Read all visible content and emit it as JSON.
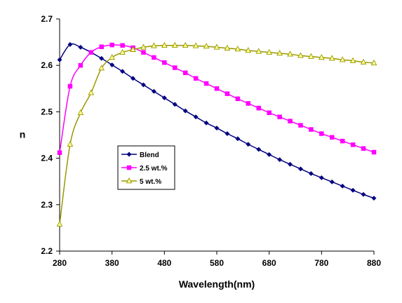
{
  "chart_data": {
    "type": "line",
    "title": "",
    "xlabel": "Wavelength(nm)",
    "ylabel": "n",
    "xlim": [
      280,
      880
    ],
    "ylim": [
      2.2,
      2.7
    ],
    "xticks": [
      280,
      380,
      480,
      580,
      680,
      780,
      880
    ],
    "yticks": [
      2.2,
      2.3,
      2.4,
      2.5,
      2.6,
      2.7
    ],
    "xtick_labels": [
      "280",
      "380",
      "480",
      "580",
      "680",
      "780",
      "880"
    ],
    "ytick_labels": [
      "2.2",
      "2.3",
      "2.4",
      "2.5",
      "2.6",
      "2.7"
    ],
    "grid": false,
    "legend_position": "center-left",
    "x": [
      280,
      300,
      320,
      340,
      360,
      380,
      400,
      420,
      440,
      460,
      480,
      500,
      520,
      540,
      560,
      580,
      600,
      620,
      640,
      660,
      680,
      700,
      720,
      740,
      760,
      780,
      800,
      820,
      840,
      860,
      880
    ],
    "series": [
      {
        "name": "Blend",
        "color": "#000080",
        "marker": "diamond",
        "values": [
          2.612,
          2.645,
          2.639,
          2.628,
          2.615,
          2.601,
          2.587,
          2.572,
          2.558,
          2.544,
          2.53,
          2.516,
          2.502,
          2.489,
          2.476,
          2.465,
          2.453,
          2.442,
          2.43,
          2.419,
          2.408,
          2.397,
          2.387,
          2.377,
          2.367,
          2.358,
          2.349,
          2.34,
          2.331,
          2.322,
          2.314
        ]
      },
      {
        "name": "2.5 wt.%",
        "color": "#FF00FF",
        "marker": "square",
        "values": [
          2.412,
          2.555,
          2.6,
          2.628,
          2.64,
          2.644,
          2.643,
          2.638,
          2.628,
          2.617,
          2.606,
          2.595,
          2.584,
          2.572,
          2.561,
          2.55,
          2.539,
          2.528,
          2.518,
          2.508,
          2.498,
          2.489,
          2.48,
          2.471,
          2.462,
          2.453,
          2.445,
          2.437,
          2.429,
          2.421,
          2.413
        ]
      },
      {
        "name": "5 wt.%",
        "color": "#999900",
        "marker": "triangle",
        "values": [
          2.258,
          2.43,
          2.498,
          2.541,
          2.594,
          2.617,
          2.628,
          2.634,
          2.639,
          2.642,
          2.643,
          2.643,
          2.643,
          2.642,
          2.641,
          2.639,
          2.637,
          2.635,
          2.632,
          2.63,
          2.628,
          2.626,
          2.624,
          2.621,
          2.619,
          2.617,
          2.615,
          2.612,
          2.61,
          2.607,
          2.605
        ]
      }
    ]
  }
}
